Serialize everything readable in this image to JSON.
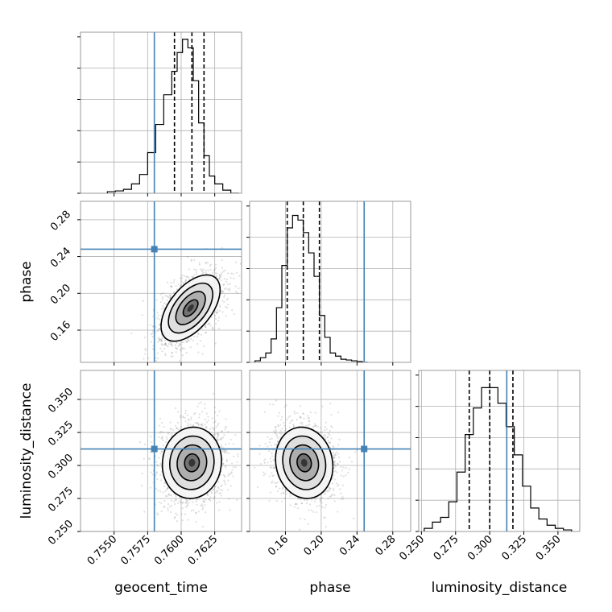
{
  "chart_data": {
    "type": "corner",
    "parameters": [
      "geocent_time",
      "phase",
      "luminosity_distance"
    ],
    "truths": {
      "geocent_time": 0.758,
      "phase": 0.248,
      "luminosity_distance": 0.3125,
      "color": "#4682b4"
    },
    "histograms": [
      {
        "param": "geocent_time",
        "xlim": [
          0.7525,
          0.7645
        ],
        "ylim": [
          0,
          1
        ],
        "quantiles": [
          0.7595,
          0.7608,
          0.7617
        ],
        "bin_edges": [
          0.7545,
          0.7551,
          0.7557,
          0.7563,
          0.7569,
          0.7575,
          0.7581,
          0.7587,
          0.7593,
          0.7597,
          0.7601,
          0.7605,
          0.7609,
          0.7613,
          0.7617,
          0.7621,
          0.7625,
          0.7631,
          0.7637,
          0.7643
        ],
        "counts": [
          0.01,
          0.015,
          0.025,
          0.06,
          0.12,
          0.26,
          0.44,
          0.63,
          0.78,
          0.9,
          0.985,
          0.93,
          0.72,
          0.45,
          0.24,
          0.11,
          0.06,
          0.02,
          0.0
        ]
      },
      {
        "param": "phase",
        "xlim": [
          0.12,
          0.3
        ],
        "ylim": [
          0,
          1
        ],
        "quantiles": [
          0.162,
          0.18,
          0.198
        ],
        "bin_edges": [
          0.126,
          0.132,
          0.138,
          0.144,
          0.15,
          0.156,
          0.162,
          0.168,
          0.174,
          0.18,
          0.186,
          0.192,
          0.198,
          0.204,
          0.21,
          0.216,
          0.222,
          0.228,
          0.234,
          0.24,
          0.246,
          0.252
        ],
        "counts": [
          0.01,
          0.03,
          0.06,
          0.15,
          0.35,
          0.62,
          0.86,
          0.94,
          0.91,
          0.83,
          0.7,
          0.55,
          0.3,
          0.16,
          0.06,
          0.04,
          0.02,
          0.015,
          0.01,
          0.005,
          0.0
        ]
      },
      {
        "param": "luminosity_distance",
        "xlim": [
          0.248,
          0.366
        ],
        "ylim": [
          0,
          1
        ],
        "quantiles": [
          0.285,
          0.3,
          0.317
        ],
        "bin_edges": [
          0.252,
          0.258,
          0.264,
          0.27,
          0.276,
          0.282,
          0.288,
          0.294,
          0.3,
          0.306,
          0.312,
          0.318,
          0.324,
          0.33,
          0.336,
          0.342,
          0.348,
          0.354,
          0.36
        ],
        "counts": [
          0.02,
          0.06,
          0.09,
          0.19,
          0.38,
          0.62,
          0.79,
          0.92,
          0.92,
          0.82,
          0.67,
          0.49,
          0.29,
          0.15,
          0.08,
          0.04,
          0.02,
          0.01
        ]
      }
    ],
    "contours": [
      {
        "x": "geocent_time",
        "y": "phase",
        "xlim": [
          0.7525,
          0.7645
        ],
        "ylim": [
          0.125,
          0.3
        ],
        "center": [
          0.7607,
          0.184
        ],
        "sigma": [
          0.0011,
          0.018
        ],
        "rho": 0.55
      },
      {
        "x": "geocent_time",
        "y": "luminosity_distance",
        "xlim": [
          0.7525,
          0.7645
        ],
        "ylim": [
          0.25,
          0.372
        ],
        "center": [
          0.7608,
          0.302
        ],
        "sigma": [
          0.0011,
          0.0135
        ],
        "rho": 0.05
      },
      {
        "x": "phase",
        "y": "luminosity_distance",
        "xlim": [
          0.12,
          0.3
        ],
        "ylim": [
          0.25,
          0.372
        ],
        "center": [
          0.181,
          0.302
        ],
        "sigma": [
          0.016,
          0.0135
        ],
        "rho": -0.1
      }
    ],
    "tick_labels": {
      "geocent_time_x": [
        "0.7550",
        "0.7575",
        "0.7600",
        "0.7625"
      ],
      "phase_x": [
        "0.16",
        "0.20",
        "0.24",
        "0.28"
      ],
      "phase_y": [
        "0.16",
        "0.20",
        "0.24",
        "0.28"
      ],
      "luminosity_distance_x": [
        "0.250",
        "0.275",
        "0.300",
        "0.325",
        "0.350"
      ],
      "luminosity_distance_y": [
        "0.250",
        "0.275",
        "0.300",
        "0.325",
        "0.350"
      ]
    },
    "tick_values": {
      "geocent_time": [
        0.755,
        0.7575,
        0.76,
        0.7625
      ],
      "phase": [
        0.16,
        0.2,
        0.24,
        0.28
      ],
      "phase_y": [
        0.16,
        0.2,
        0.24,
        0.28
      ],
      "luminosity_distance": [
        0.25,
        0.275,
        0.3,
        0.325,
        0.35
      ]
    },
    "xlabels": [
      "geocent_time",
      "phase",
      "luminosity_distance"
    ],
    "ylabels": [
      "phase",
      "luminosity_distance"
    ],
    "grid": true
  }
}
